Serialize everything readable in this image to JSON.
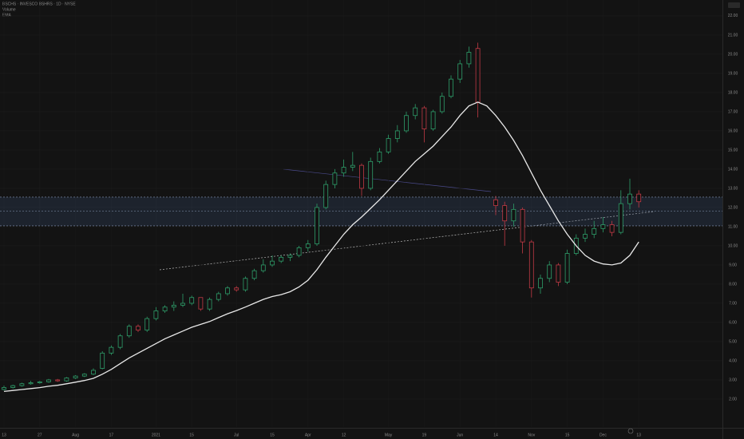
{
  "chart_data": {
    "type": "candlestick",
    "title": "BSCHS · INVESCO BSHRS · 1D · NYSE",
    "subtitle": "Volume",
    "legend": "EMA",
    "up_color": "#2e9e6a",
    "down_color": "#c23a45",
    "ylim": [
      0.54,
      22.83
    ],
    "yticks": [
      {
        "value": 2,
        "label": "2.00"
      },
      {
        "value": 3,
        "label": "3.00"
      },
      {
        "value": 4,
        "label": "4.00"
      },
      {
        "value": 5,
        "label": "5.00"
      },
      {
        "value": 6,
        "label": "6.00"
      },
      {
        "value": 7,
        "label": "7.00"
      },
      {
        "value": 8,
        "label": "8.00"
      },
      {
        "value": 9,
        "label": "9.00"
      },
      {
        "value": 10,
        "label": "10.00"
      },
      {
        "value": 11,
        "label": "11.00"
      },
      {
        "value": 12,
        "label": "12.00"
      },
      {
        "value": 13,
        "label": "13.00"
      },
      {
        "value": 14,
        "label": "14.00"
      },
      {
        "value": 15,
        "label": "15.00"
      },
      {
        "value": 16,
        "label": "16.00"
      },
      {
        "value": 17,
        "label": "17.00"
      },
      {
        "value": 18,
        "label": "18.00"
      },
      {
        "value": 19,
        "label": "19.00"
      },
      {
        "value": 20,
        "label": "20.00"
      },
      {
        "value": 21,
        "label": "21.00"
      },
      {
        "value": 22,
        "label": "22.00"
      }
    ],
    "grid": true,
    "zone": [
      11.04,
      12.54
    ],
    "level": 11.8,
    "categories": [
      "13",
      null,
      null,
      null,
      "27",
      null,
      null,
      null,
      "Aug",
      null,
      null,
      null,
      "17",
      null,
      null,
      null,
      null,
      "2021",
      null,
      null,
      null,
      "15",
      null,
      null,
      null,
      null,
      "Jul",
      null,
      null,
      null,
      "15",
      null,
      null,
      null,
      "Apr",
      null,
      null,
      null,
      "12",
      null,
      null,
      null,
      null,
      "May",
      null,
      null,
      null,
      "19",
      null,
      null,
      null,
      "Jun",
      null,
      null,
      null,
      "14",
      null,
      null,
      null,
      "Nov",
      null,
      null,
      null,
      "15",
      null,
      null,
      null,
      "Dec",
      null,
      null,
      null,
      "13"
    ],
    "ohlc": [
      [
        2.5,
        2.7,
        2.45,
        2.6
      ],
      [
        2.6,
        2.75,
        2.55,
        2.7
      ],
      [
        2.7,
        2.85,
        2.65,
        2.8
      ],
      [
        2.8,
        2.95,
        2.75,
        2.85
      ],
      [
        2.85,
        2.95,
        2.8,
        2.9
      ],
      [
        2.9,
        3.05,
        2.85,
        3.0
      ],
      [
        3.0,
        3.05,
        2.9,
        2.95
      ],
      [
        2.95,
        3.15,
        2.9,
        3.1
      ],
      [
        3.1,
        3.25,
        3.05,
        3.2
      ],
      [
        3.2,
        3.35,
        3.15,
        3.3
      ],
      [
        3.3,
        3.6,
        3.25,
        3.5
      ],
      [
        3.6,
        4.5,
        3.55,
        4.4
      ],
      [
        4.4,
        4.8,
        4.3,
        4.7
      ],
      [
        4.7,
        5.4,
        4.6,
        5.3
      ],
      [
        5.3,
        5.9,
        5.2,
        5.8
      ],
      [
        5.8,
        5.9,
        5.5,
        5.6
      ],
      [
        5.6,
        6.3,
        5.5,
        6.2
      ],
      [
        6.2,
        6.8,
        6.1,
        6.6
      ],
      [
        6.6,
        6.9,
        6.5,
        6.8
      ],
      [
        6.8,
        7.1,
        6.6,
        6.9
      ],
      [
        6.9,
        7.5,
        6.8,
        7.0
      ],
      [
        7.0,
        7.4,
        6.9,
        7.3
      ],
      [
        7.3,
        7.3,
        6.6,
        6.7
      ],
      [
        6.7,
        7.3,
        6.6,
        7.2
      ],
      [
        7.2,
        7.6,
        7.1,
        7.5
      ],
      [
        7.5,
        7.9,
        7.4,
        7.8
      ],
      [
        7.8,
        7.9,
        7.6,
        7.7
      ],
      [
        7.7,
        8.4,
        7.6,
        8.3
      ],
      [
        8.3,
        8.8,
        8.2,
        8.7
      ],
      [
        8.7,
        9.3,
        8.6,
        9.0
      ],
      [
        9.0,
        9.5,
        8.9,
        9.2
      ],
      [
        9.2,
        9.5,
        9.1,
        9.4
      ],
      [
        9.4,
        9.6,
        9.2,
        9.5
      ],
      [
        9.5,
        10.0,
        9.4,
        9.9
      ],
      [
        9.9,
        10.3,
        9.7,
        10.1
      ],
      [
        10.1,
        12.2,
        10.0,
        12.0
      ],
      [
        12.0,
        13.4,
        11.9,
        13.2
      ],
      [
        13.2,
        14.0,
        13.0,
        13.8
      ],
      [
        13.8,
        14.5,
        13.6,
        14.1
      ],
      [
        14.1,
        14.9,
        13.9,
        14.2
      ],
      [
        14.2,
        14.3,
        12.6,
        13.0
      ],
      [
        13.0,
        14.6,
        12.9,
        14.4
      ],
      [
        14.4,
        15.1,
        14.3,
        14.9
      ],
      [
        14.9,
        15.8,
        14.8,
        15.6
      ],
      [
        15.6,
        16.3,
        15.4,
        16.0
      ],
      [
        16.0,
        17.0,
        15.9,
        16.8
      ],
      [
        16.8,
        17.4,
        16.6,
        17.2
      ],
      [
        17.2,
        17.3,
        15.4,
        16.1
      ],
      [
        16.1,
        17.1,
        16.0,
        17.0
      ],
      [
        17.0,
        18.0,
        16.9,
        17.8
      ],
      [
        17.8,
        18.9,
        17.7,
        18.7
      ],
      [
        18.7,
        19.7,
        18.5,
        19.5
      ],
      [
        19.5,
        20.4,
        19.3,
        20.1
      ],
      [
        20.3,
        20.6,
        16.7,
        17.5
      ],
      null,
      [
        12.4,
        12.6,
        11.6,
        12.1
      ],
      [
        12.1,
        12.3,
        10.0,
        11.3
      ],
      [
        11.3,
        12.2,
        11.0,
        11.9
      ],
      [
        11.9,
        12.0,
        9.6,
        10.2
      ],
      [
        10.2,
        10.3,
        7.3,
        7.8
      ],
      [
        7.8,
        8.5,
        7.5,
        8.3
      ],
      [
        8.3,
        9.2,
        8.1,
        9.0
      ],
      [
        9.0,
        9.1,
        7.9,
        8.1
      ],
      [
        8.1,
        9.8,
        8.0,
        9.6
      ],
      [
        9.6,
        10.6,
        9.5,
        10.4
      ],
      [
        10.4,
        10.9,
        10.2,
        10.6
      ],
      [
        10.6,
        11.3,
        10.4,
        10.9
      ],
      [
        10.9,
        11.5,
        10.7,
        11.1
      ],
      [
        11.1,
        11.3,
        10.5,
        10.7
      ],
      [
        10.7,
        12.9,
        10.6,
        12.2
      ],
      [
        12.2,
        13.5,
        11.9,
        12.7
      ],
      [
        12.7,
        12.9,
        12.0,
        12.3
      ]
    ],
    "series": [
      {
        "name": "EMA",
        "color": "#e8e8e8",
        "values": [
          2.4,
          2.45,
          2.5,
          2.55,
          2.6,
          2.67,
          2.72,
          2.8,
          2.88,
          2.97,
          3.08,
          3.3,
          3.55,
          3.85,
          4.15,
          4.4,
          4.65,
          4.9,
          5.15,
          5.35,
          5.55,
          5.75,
          5.9,
          6.05,
          6.25,
          6.45,
          6.62,
          6.8,
          7.0,
          7.2,
          7.35,
          7.45,
          7.6,
          7.85,
          8.2,
          8.75,
          9.4,
          10.0,
          10.6,
          11.1,
          11.5,
          11.95,
          12.4,
          12.9,
          13.4,
          13.9,
          14.4,
          14.8,
          15.2,
          15.7,
          16.2,
          16.8,
          17.3,
          17.5,
          17.3,
          16.8,
          16.2,
          15.5,
          14.7,
          13.8,
          12.9,
          12.1,
          11.3,
          10.6,
          10.0,
          9.5,
          9.2,
          9.05,
          9.0,
          9.1,
          9.5,
          10.2
        ]
      }
    ]
  }
}
